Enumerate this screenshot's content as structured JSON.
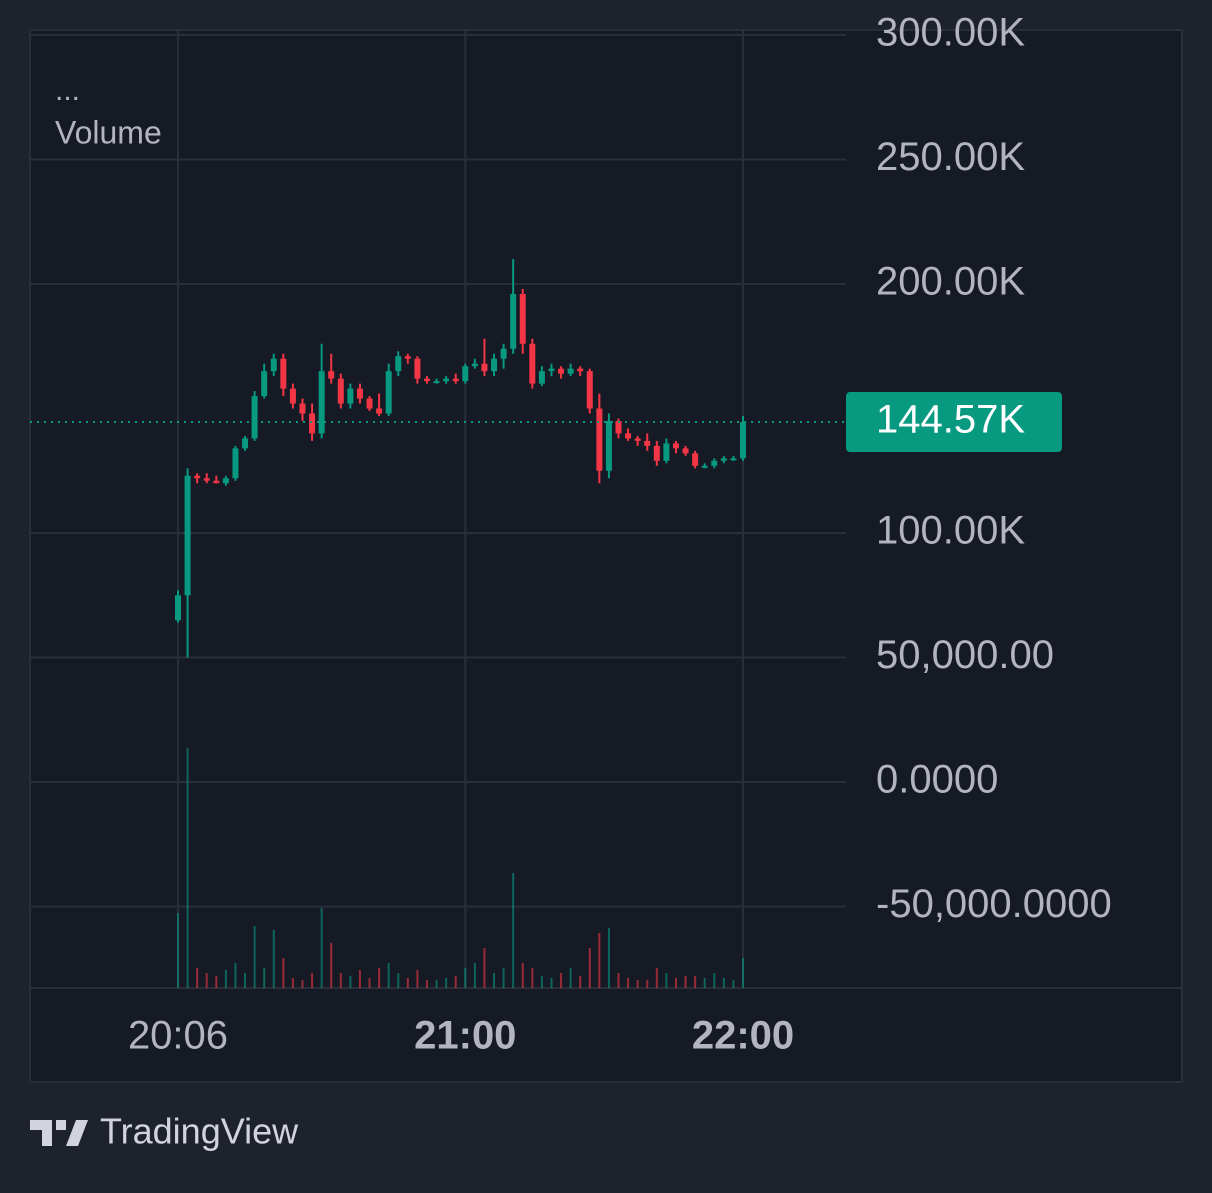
{
  "chart_data": {
    "type": "candlestick",
    "legend": {
      "dots": "...",
      "label": "Volume"
    },
    "categories": [
      "20:06",
      null,
      null,
      null,
      null,
      null,
      null,
      null,
      null,
      null,
      null,
      null,
      null,
      null,
      null,
      null,
      null,
      null,
      null,
      null,
      null,
      null,
      null,
      null,
      null,
      null,
      null,
      null,
      null,
      null,
      "21:00",
      null,
      null,
      null,
      null,
      null,
      null,
      null,
      null,
      null,
      null,
      null,
      null,
      null,
      null,
      null,
      null,
      null,
      null,
      null,
      null,
      null,
      null,
      null,
      null,
      null,
      null,
      null,
      null,
      "22:00"
    ],
    "open": [
      65000,
      75000,
      123000,
      122000,
      121000,
      120000,
      122000,
      134000,
      138000,
      155000,
      165000,
      170000,
      158000,
      152000,
      148000,
      140000,
      165000,
      162000,
      152000,
      158000,
      154000,
      150000,
      148000,
      165000,
      171000,
      170000,
      162000,
      161000,
      161000,
      162000,
      161000,
      167000,
      168000,
      165000,
      170000,
      174000,
      196000,
      176000,
      160000,
      165000,
      166000,
      164000,
      166000,
      165000,
      150000,
      125000,
      145000,
      140000,
      138000,
      137000,
      135000,
      129000,
      136000,
      134000,
      132000,
      127000,
      127000,
      129000,
      130000,
      130000
    ],
    "high": [
      77000,
      126000,
      124000,
      124000,
      123000,
      123000,
      135000,
      139000,
      157000,
      168000,
      172000,
      172000,
      160000,
      154000,
      152000,
      176000,
      172000,
      164000,
      160000,
      160000,
      155000,
      156000,
      168000,
      173000,
      172000,
      171000,
      163000,
      162000,
      163000,
      164000,
      168000,
      170000,
      178000,
      172000,
      176000,
      210000,
      198000,
      178000,
      167000,
      168000,
      167000,
      168000,
      167000,
      166000,
      156000,
      148000,
      146000,
      142000,
      139000,
      140000,
      137000,
      138000,
      137000,
      135000,
      133000,
      128000,
      130000,
      131000,
      131000,
      147000
    ],
    "low": [
      64000,
      50000,
      120000,
      120000,
      120000,
      119000,
      121000,
      133000,
      137000,
      154000,
      163000,
      155000,
      150000,
      145000,
      137000,
      138000,
      160000,
      150000,
      150000,
      152000,
      149000,
      147000,
      147000,
      163000,
      168000,
      160000,
      160000,
      160000,
      160000,
      160000,
      160000,
      166000,
      163000,
      163000,
      166000,
      172000,
      172000,
      158000,
      159000,
      163000,
      162000,
      163000,
      163000,
      148000,
      120000,
      122000,
      138000,
      137000,
      135000,
      133000,
      127000,
      128000,
      132000,
      131000,
      126000,
      126000,
      126000,
      128000,
      129000,
      129000
    ],
    "close": [
      75000,
      123000,
      122000,
      121000,
      120000,
      122000,
      134000,
      138000,
      155000,
      165000,
      170000,
      158000,
      152000,
      148000,
      140000,
      165000,
      162000,
      152000,
      158000,
      154000,
      150000,
      148000,
      165000,
      171000,
      170000,
      162000,
      161000,
      161000,
      162000,
      161000,
      167000,
      168000,
      165000,
      170000,
      174000,
      196000,
      176000,
      160000,
      165000,
      166000,
      164000,
      166000,
      165000,
      150000,
      125000,
      145000,
      140000,
      138000,
      137000,
      135000,
      129000,
      136000,
      134000,
      132000,
      127000,
      127000,
      129000,
      130000,
      130000,
      144570
    ],
    "volume": {
      "name": "Volume",
      "values": [
        75,
        240,
        20,
        15,
        12,
        18,
        25,
        15,
        62,
        20,
        58,
        30,
        10,
        8,
        15,
        80,
        45,
        15,
        12,
        18,
        10,
        20,
        25,
        15,
        10,
        18,
        8,
        8,
        10,
        12,
        20,
        25,
        40,
        15,
        20,
        115,
        25,
        20,
        12,
        10,
        15,
        20,
        12,
        40,
        55,
        60,
        15,
        10,
        8,
        8,
        20,
        15,
        10,
        12,
        12,
        10,
        15,
        10,
        8,
        30
      ]
    },
    "up_color": "#089981",
    "down_color": "#f23645",
    "ylim": [
      -82700,
      302000
    ],
    "yticks": [
      {
        "value": 300000,
        "label": "300.00K"
      },
      {
        "value": 250000,
        "label": "250.00K"
      },
      {
        "value": 200000,
        "label": "200.00K"
      },
      {
        "value": 100000,
        "label": "100.00K"
      },
      {
        "value": 50000,
        "label": "50,000.00"
      },
      {
        "value": 0,
        "label": "0.0000"
      },
      {
        "value": -50000,
        "label": "-50,000.0000"
      }
    ],
    "last_price": {
      "value": 144570,
      "label": "144.57K"
    },
    "grid": true
  },
  "footer": {
    "brand": "TradingView"
  }
}
